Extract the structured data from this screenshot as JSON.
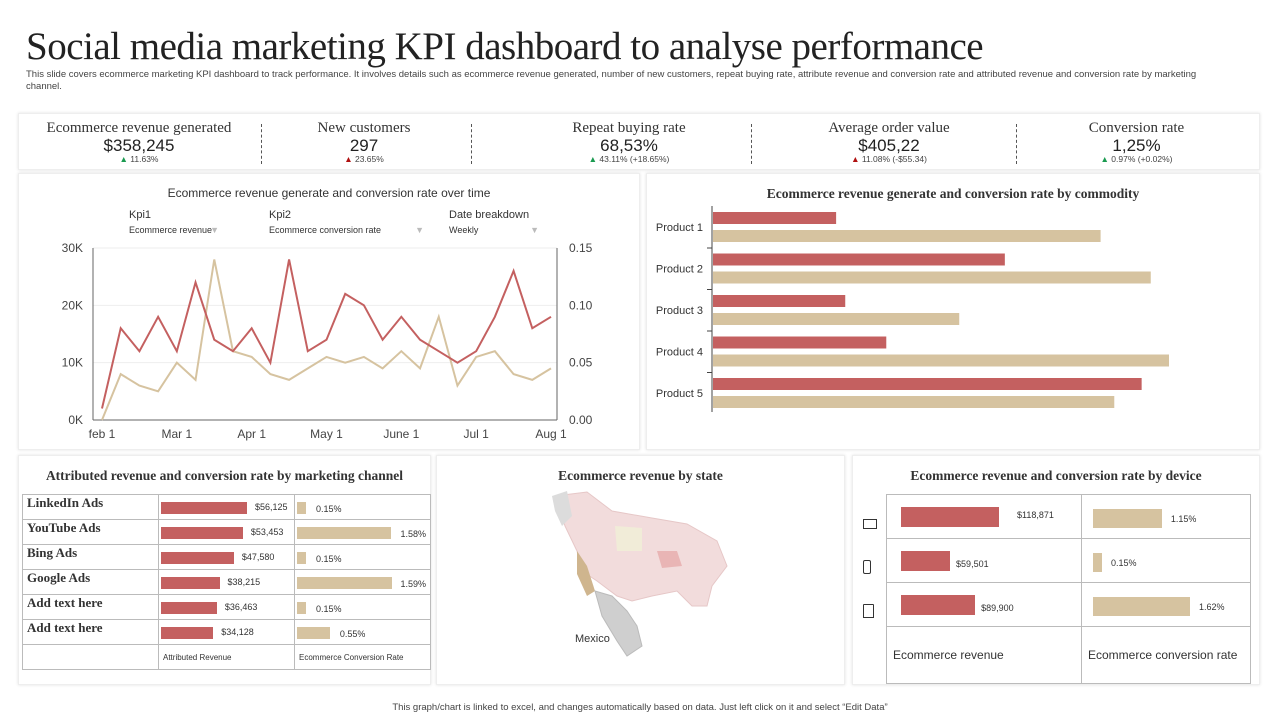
{
  "header": {
    "title": "Social media marketing KPI dashboard to analyse performance",
    "subtitle": "This slide covers ecommerce marketing KPI  dashboard to track performance. It involves details such as ecommerce revenue generated, number of new customers, repeat buying rate, attribute revenue and conversion rate and attributed revenue and conversion rate by marketing  channel."
  },
  "kpis": [
    {
      "label": "Ecommerce revenue generated",
      "value": "$358,245",
      "change": "11.63%",
      "trend": "up"
    },
    {
      "label": "New customers",
      "value": "297",
      "change": "23.65%",
      "trend": "down"
    },
    {
      "label": "Repeat buying rate",
      "value": "68,53%",
      "change": "43.11% (+18.65%)",
      "trend": "up"
    },
    {
      "label": "Average order value",
      "value": "$405,22",
      "change": "11.08% (-$55.34)",
      "trend": "down"
    },
    {
      "label": "Conversion rate",
      "value": "1,25%",
      "change": "0.97% (+0.02%)",
      "trend": "up"
    }
  ],
  "colors": {
    "revenue": "#c46060",
    "conversion": "#d6c3a0",
    "up": "#1a9a50",
    "down": "#b01010"
  },
  "line_chart": {
    "title": "Ecommerce revenue generate and conversion rate over time",
    "filters": [
      {
        "label": "Kpi1",
        "value": "Ecommerce revenue"
      },
      {
        "label": "Kpi2",
        "value": "Ecommerce conversion rate"
      },
      {
        "label": "Date breakdown",
        "value": "Weekly"
      }
    ]
  },
  "chart_data": [
    {
      "type": "line",
      "title": "Ecommerce revenue generate and conversion rate over time",
      "x_ticks": [
        "feb 1",
        "Mar 1",
        "Apr 1",
        "May 1",
        "June 1",
        "Jul 1",
        "Aug 1"
      ],
      "y_ticks": [
        "0K",
        "10K",
        "20K",
        "30K"
      ],
      "y2_ticks": [
        "0.00",
        "0.05",
        "0.10",
        "0.15"
      ],
      "ylim": [
        0,
        30000
      ],
      "y2lim": [
        0,
        0.15
      ],
      "grid": true,
      "series": [
        {
          "name": "Ecommerce revenue",
          "axis": "left",
          "values": [
            2000,
            16000,
            12000,
            18000,
            12000,
            24000,
            14000,
            12000,
            16000,
            10000,
            28000,
            12000,
            14000,
            22000,
            20000,
            14000,
            18000,
            14000,
            12000,
            10000,
            12000,
            18000,
            26000,
            16000,
            18000
          ]
        },
        {
          "name": "Ecommerce conversion rate",
          "axis": "right",
          "values": [
            0,
            0.04,
            0.03,
            0.025,
            0.05,
            0.035,
            0.14,
            0.06,
            0.055,
            0.04,
            0.035,
            0.045,
            0.055,
            0.05,
            0.055,
            0.045,
            0.06,
            0.045,
            0.09,
            0.03,
            0.055,
            0.06,
            0.04,
            0.035,
            0.045
          ]
        }
      ]
    },
    {
      "type": "bar",
      "title": "Ecommerce revenue generate and conversion rate by commodity",
      "categories": [
        "Product 1",
        "Product 2",
        "Product 3",
        "Product 4",
        "Product 5"
      ],
      "series": [
        {
          "values": [
            27,
            64,
            29,
            38,
            94
          ]
        },
        {
          "values": [
            85,
            96,
            54,
            100,
            88
          ]
        }
      ]
    }
  ],
  "channels": {
    "title": "Attributed revenue and conversion rate by marketing channel",
    "col1": "Attributed Revenue",
    "col2": "Ecommerce  Conversion Rate",
    "rows": [
      {
        "name": "LinkedIn Ads",
        "revenue": "$56,125",
        "rev_val": 56125,
        "rate": "0.15%",
        "rate_val": 0.15
      },
      {
        "name": "YouTube Ads",
        "revenue": "$53,453",
        "rev_val": 53453,
        "rate": "1.58%",
        "rate_val": 1.58
      },
      {
        "name": "Bing Ads",
        "revenue": "$47,580",
        "rev_val": 47580,
        "rate": "0.15%",
        "rate_val": 0.15
      },
      {
        "name": "Google Ads",
        "revenue": "$38,215",
        "rev_val": 38215,
        "rate": "1.59%",
        "rate_val": 1.59
      },
      {
        "name": "Add text here",
        "revenue": "$36,463",
        "rev_val": 36463,
        "rate": "0.15%",
        "rate_val": 0.15
      },
      {
        "name": "Add text here",
        "revenue": "$34,128",
        "rev_val": 34128,
        "rate": "0.55%",
        "rate_val": 0.55
      }
    ]
  },
  "map": {
    "title": "Ecommerce revenue by state",
    "label": "Mexico"
  },
  "devices": {
    "title": "Ecommerce revenue and conversion rate by device",
    "col1": "Ecommerce revenue",
    "col2": "Ecommerce conversion rate",
    "rows": [
      {
        "icon": "desktop-icon",
        "revenue": "$118,871",
        "rev_val": 118871,
        "rate": "1.15%",
        "rate_val": 1.15
      },
      {
        "icon": "mobile-icon",
        "revenue": "$59,501",
        "rev_val": 59501,
        "rate": "0.15%",
        "rate_val": 0.15
      },
      {
        "icon": "shopping-bag-icon",
        "revenue": "$89,900",
        "rev_val": 89900,
        "rate": "1.62%",
        "rate_val": 1.62
      }
    ]
  },
  "footer": "This graph/chart is linked to excel, and changes automatically based on data. Just left click on it and select “Edit Data”"
}
